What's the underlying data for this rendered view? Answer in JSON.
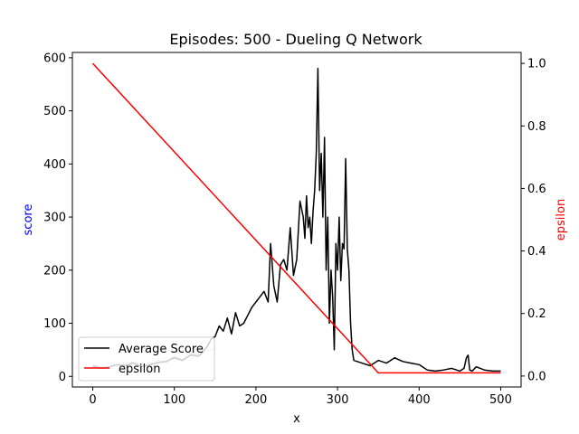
{
  "chart_data": {
    "type": "line",
    "title": "Episodes: 500 - Dueling Q Network",
    "xlabel": "x",
    "ylabel_left": "score",
    "ylabel_right": "epsilon",
    "colors": {
      "score": "#000000",
      "epsilon": "#ff0000",
      "raw": "#c8c8c8",
      "ylabel_left": "#0000ff",
      "ylabel_right": "#ff0000"
    },
    "xlim": [
      -25,
      525
    ],
    "ylim_left": [
      -20,
      610
    ],
    "ylim_right": [
      -0.035,
      1.035
    ],
    "xticks": [
      0,
      100,
      200,
      300,
      400,
      500
    ],
    "yticks_left": [
      0,
      100,
      200,
      300,
      400,
      500,
      600
    ],
    "yticks_right": [
      0.0,
      0.2,
      0.4,
      0.6,
      0.8,
      1.0
    ],
    "grid": false,
    "legend": {
      "placement": "lower-left",
      "entries": [
        "Average Score",
        "epsilon"
      ]
    },
    "series": [
      {
        "name": "Average Score",
        "axis": "left",
        "x": [
          0,
          10,
          20,
          30,
          40,
          50,
          60,
          70,
          80,
          90,
          100,
          110,
          120,
          130,
          140,
          145,
          150,
          155,
          160,
          165,
          170,
          175,
          180,
          185,
          190,
          195,
          200,
          205,
          210,
          215,
          218,
          222,
          226,
          230,
          234,
          238,
          242,
          246,
          250,
          254,
          258,
          260,
          262,
          264,
          266,
          268,
          270,
          272,
          274,
          276,
          278,
          280,
          282,
          284,
          286,
          288,
          290,
          292,
          294,
          296,
          298,
          300,
          302,
          304,
          306,
          308,
          310,
          312,
          314,
          316,
          318,
          320,
          330,
          340,
          350,
          360,
          370,
          380,
          390,
          400,
          410,
          420,
          430,
          440,
          450,
          455,
          458,
          460,
          462,
          465,
          470,
          480,
          490,
          500
        ],
        "y": [
          20,
          15,
          18,
          22,
          20,
          25,
          18,
          22,
          26,
          28,
          35,
          30,
          40,
          38,
          55,
          70,
          75,
          95,
          85,
          110,
          80,
          120,
          95,
          100,
          115,
          130,
          140,
          150,
          160,
          140,
          250,
          170,
          140,
          210,
          220,
          200,
          280,
          190,
          220,
          330,
          300,
          260,
          340,
          280,
          300,
          250,
          310,
          350,
          420,
          580,
          350,
          420,
          300,
          450,
          200,
          300,
          100,
          200,
          150,
          50,
          250,
          200,
          300,
          180,
          250,
          240,
          410,
          240,
          200,
          100,
          50,
          30,
          25,
          20,
          30,
          25,
          35,
          28,
          25,
          22,
          12,
          10,
          12,
          15,
          10,
          15,
          35,
          40,
          12,
          10,
          18,
          12,
          10,
          10
        ]
      },
      {
        "name": "epsilon",
        "axis": "right",
        "x": [
          0,
          350,
          500
        ],
        "y": [
          1.0,
          0.01,
          0.01
        ]
      },
      {
        "axis": "left",
        "x": [
          0,
          10,
          20,
          30,
          40,
          50,
          60,
          70,
          80,
          90,
          100,
          110,
          120,
          130,
          140,
          150
        ],
        "y": [
          22,
          18,
          25,
          20,
          22,
          28,
          20,
          24,
          30,
          26,
          38,
          32,
          45,
          40,
          48,
          52
        ]
      }
    ]
  }
}
